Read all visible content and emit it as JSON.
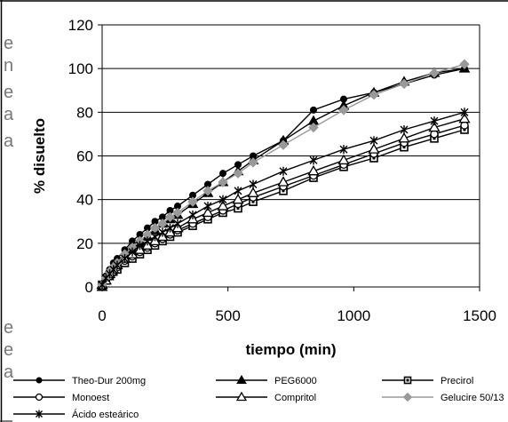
{
  "page": {
    "edge_fragments": [
      "e",
      "n",
      "e",
      "a",
      "a",
      "e",
      "e",
      "a"
    ]
  },
  "chart_data": {
    "type": "line",
    "title": "",
    "xlabel": "tiempo (min)",
    "ylabel": "% disuelto",
    "xlim": [
      0,
      1500
    ],
    "ylim": [
      0,
      120
    ],
    "xticks": [
      0,
      500,
      1000,
      1500
    ],
    "yticks": [
      0,
      20,
      40,
      60,
      80,
      100,
      120
    ],
    "grid": "horizontal",
    "legend_position": "bottom",
    "series": [
      {
        "name": "Theo-Dur 200mg",
        "marker": "filled-circle",
        "color": "#000000",
        "x": [
          0,
          15,
          30,
          45,
          60,
          90,
          120,
          150,
          180,
          210,
          240,
          270,
          300,
          360,
          420,
          480,
          540,
          600,
          720,
          840,
          960,
          1080,
          1200,
          1320,
          1440
        ],
        "y": [
          0,
          5,
          8,
          11,
          13,
          17,
          21,
          24,
          27,
          30,
          32,
          35,
          37,
          42,
          47,
          52,
          56,
          60,
          67,
          81,
          86,
          89,
          93,
          97,
          100
        ]
      },
      {
        "name": "PEG6000",
        "marker": "filled-triangle",
        "color": "#000000",
        "x": [
          0,
          15,
          30,
          45,
          60,
          90,
          120,
          150,
          180,
          210,
          240,
          270,
          300,
          360,
          420,
          480,
          540,
          600,
          720,
          840,
          960,
          1080,
          1200,
          1320,
          1440
        ],
        "y": [
          0,
          3,
          6,
          8,
          10,
          14,
          17,
          20,
          23,
          26,
          29,
          31,
          33,
          38,
          43,
          48,
          53,
          58,
          67,
          76,
          83,
          89,
          94,
          98,
          100
        ]
      },
      {
        "name": "Precirol",
        "marker": "square-dot",
        "color": "#000000",
        "x": [
          0,
          15,
          30,
          45,
          60,
          90,
          120,
          150,
          180,
          210,
          240,
          270,
          300,
          360,
          420,
          480,
          540,
          600,
          720,
          840,
          960,
          1080,
          1200,
          1320,
          1440
        ],
        "y": [
          1,
          3,
          5,
          7,
          8,
          11,
          13,
          15,
          17,
          19,
          21,
          23,
          25,
          28,
          31,
          34,
          36,
          39,
          44,
          50,
          55,
          59,
          64,
          68,
          72
        ]
      },
      {
        "name": "Monoest",
        "marker": "open-circle",
        "color": "#000000",
        "x": [
          0,
          15,
          30,
          45,
          60,
          90,
          120,
          150,
          180,
          210,
          240,
          270,
          300,
          360,
          420,
          480,
          540,
          600,
          720,
          840,
          960,
          1080,
          1200,
          1320,
          1440
        ],
        "y": [
          1,
          3,
          5,
          7,
          9,
          12,
          14,
          16,
          18,
          20,
          22,
          24,
          26,
          29,
          32,
          35,
          38,
          41,
          46,
          51,
          56,
          61,
          66,
          70,
          74
        ]
      },
      {
        "name": "Compritol",
        "marker": "open-triangle",
        "color": "#000000",
        "x": [
          0,
          15,
          30,
          45,
          60,
          90,
          120,
          150,
          180,
          210,
          240,
          270,
          300,
          360,
          420,
          480,
          540,
          600,
          720,
          840,
          960,
          1080,
          1200,
          1320,
          1440
        ],
        "y": [
          1,
          3,
          6,
          8,
          10,
          13,
          15,
          17,
          19,
          21,
          23,
          25,
          27,
          31,
          34,
          37,
          40,
          43,
          48,
          53,
          58,
          63,
          68,
          73,
          77
        ]
      },
      {
        "name": "Gelucire 50/13",
        "marker": "filled-diamond",
        "color": "#999999",
        "x": [
          0,
          15,
          30,
          45,
          60,
          90,
          120,
          150,
          180,
          210,
          240,
          270,
          300,
          360,
          420,
          480,
          540,
          600,
          720,
          840,
          960,
          1080,
          1200,
          1320,
          1440
        ],
        "y": [
          1,
          4,
          7,
          9,
          11,
          15,
          18,
          21,
          24,
          27,
          29,
          32,
          34,
          39,
          44,
          48,
          52,
          57,
          65,
          73,
          81,
          88,
          93,
          98,
          102
        ]
      },
      {
        "name": "Ácido esteárico",
        "marker": "star",
        "color": "#000000",
        "x": [
          0,
          15,
          30,
          45,
          60,
          90,
          120,
          150,
          180,
          210,
          240,
          270,
          300,
          360,
          420,
          480,
          540,
          600,
          720,
          840,
          960,
          1080,
          1200,
          1320,
          1440
        ],
        "y": [
          1,
          4,
          6,
          8,
          10,
          13,
          16,
          19,
          21,
          23,
          25,
          27,
          29,
          33,
          37,
          40,
          44,
          47,
          53,
          58,
          63,
          67,
          72,
          76,
          80
        ]
      }
    ]
  }
}
